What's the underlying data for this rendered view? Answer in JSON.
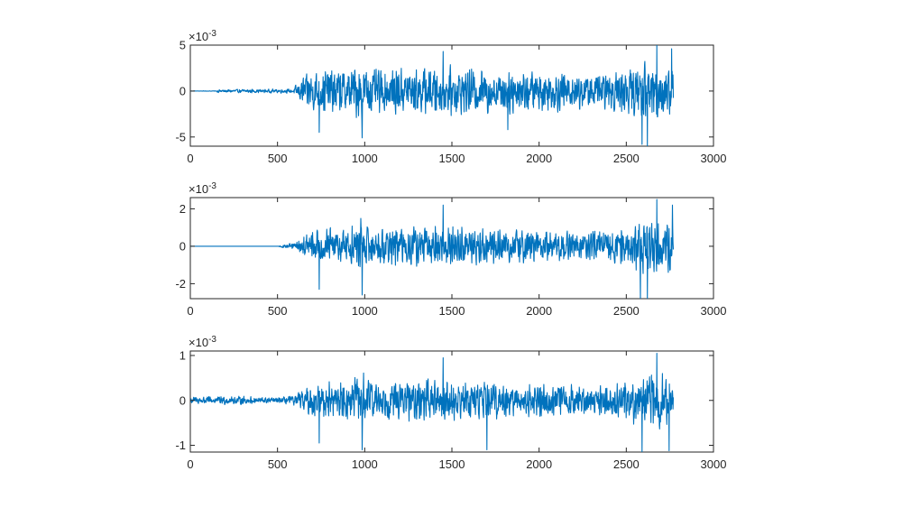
{
  "line_color": "#0072BD",
  "axis_color": "#262626",
  "chart_data": [
    {
      "type": "line",
      "exponent_label": "×10",
      "exponent_power": "-3",
      "xlim": [
        0,
        3000
      ],
      "ylim": [
        -6,
        5
      ],
      "xticks": [
        0,
        500,
        1000,
        1500,
        2000,
        2500,
        3000
      ],
      "yticks": [
        -5,
        0,
        5
      ],
      "grid": false,
      "x_range": [
        0,
        2770
      ],
      "envelope": [
        {
          "x": 0,
          "a": 0.02
        },
        {
          "x": 150,
          "a": 0.04
        },
        {
          "x": 155,
          "a": 0.25
        },
        {
          "x": 580,
          "a": 0.3
        },
        {
          "x": 610,
          "a": 1.0
        },
        {
          "x": 650,
          "a": 2.2
        },
        {
          "x": 720,
          "a": 3.3
        },
        {
          "x": 900,
          "a": 3.3
        },
        {
          "x": 980,
          "a": 4.6
        },
        {
          "x": 1050,
          "a": 3.2
        },
        {
          "x": 1400,
          "a": 3.5
        },
        {
          "x": 1700,
          "a": 3.2
        },
        {
          "x": 2000,
          "a": 3.0
        },
        {
          "x": 2300,
          "a": 2.6
        },
        {
          "x": 2500,
          "a": 3.2
        },
        {
          "x": 2600,
          "a": 4.8
        },
        {
          "x": 2700,
          "a": 4.4
        },
        {
          "x": 2770,
          "a": 4.0
        }
      ],
      "peaks": [
        {
          "x": 985,
          "y": -5.1
        },
        {
          "x": 1450,
          "y": 4.3
        },
        {
          "x": 2590,
          "y": -5.8
        },
        {
          "x": 2620,
          "y": -6.0
        },
        {
          "x": 2675,
          "y": 5.0
        },
        {
          "x": 2760,
          "y": 4.6
        },
        {
          "x": 740,
          "y": -4.5
        },
        {
          "x": 1820,
          "y": -4.2
        }
      ]
    },
    {
      "type": "line",
      "exponent_label": "×10",
      "exponent_power": "-3",
      "xlim": [
        0,
        3000
      ],
      "ylim": [
        -2.8,
        2.6
      ],
      "xticks": [
        0,
        500,
        1000,
        1500,
        2000,
        2500,
        3000
      ],
      "yticks": [
        -2,
        0,
        2
      ],
      "grid": false,
      "x_range": [
        0,
        2770
      ],
      "envelope": [
        {
          "x": 0,
          "a": 0.0
        },
        {
          "x": 505,
          "a": 0.0
        },
        {
          "x": 510,
          "a": 0.08
        },
        {
          "x": 600,
          "a": 0.25
        },
        {
          "x": 650,
          "a": 0.8
        },
        {
          "x": 720,
          "a": 1.3
        },
        {
          "x": 900,
          "a": 1.3
        },
        {
          "x": 980,
          "a": 1.9
        },
        {
          "x": 1050,
          "a": 1.3
        },
        {
          "x": 1400,
          "a": 1.5
        },
        {
          "x": 1700,
          "a": 1.3
        },
        {
          "x": 2000,
          "a": 1.2
        },
        {
          "x": 2300,
          "a": 1.0
        },
        {
          "x": 2500,
          "a": 1.4
        },
        {
          "x": 2600,
          "a": 2.0
        },
        {
          "x": 2700,
          "a": 1.9
        },
        {
          "x": 2770,
          "a": 1.7
        }
      ],
      "peaks": [
        {
          "x": 985,
          "y": -2.6
        },
        {
          "x": 1450,
          "y": 2.2
        },
        {
          "x": 2580,
          "y": -2.8
        },
        {
          "x": 2620,
          "y": -2.8
        },
        {
          "x": 2675,
          "y": 2.5
        },
        {
          "x": 2765,
          "y": 2.2
        },
        {
          "x": 740,
          "y": -2.3
        }
      ]
    },
    {
      "type": "line",
      "exponent_label": "×10",
      "exponent_power": "-3",
      "xlim": [
        0,
        3000
      ],
      "ylim": [
        -1.15,
        1.1
      ],
      "xticks": [
        0,
        500,
        1000,
        1500,
        2000,
        2500,
        3000
      ],
      "yticks": [
        -1,
        0,
        1
      ],
      "grid": false,
      "x_range": [
        0,
        2770
      ],
      "envelope": [
        {
          "x": 0,
          "a": 0.12
        },
        {
          "x": 300,
          "a": 0.12
        },
        {
          "x": 500,
          "a": 0.08
        },
        {
          "x": 600,
          "a": 0.15
        },
        {
          "x": 650,
          "a": 0.35
        },
        {
          "x": 720,
          "a": 0.55
        },
        {
          "x": 900,
          "a": 0.55
        },
        {
          "x": 980,
          "a": 0.8
        },
        {
          "x": 1050,
          "a": 0.55
        },
        {
          "x": 1400,
          "a": 0.6
        },
        {
          "x": 1700,
          "a": 0.55
        },
        {
          "x": 2000,
          "a": 0.5
        },
        {
          "x": 2300,
          "a": 0.42
        },
        {
          "x": 2500,
          "a": 0.55
        },
        {
          "x": 2600,
          "a": 0.85
        },
        {
          "x": 2700,
          "a": 0.8
        },
        {
          "x": 2770,
          "a": 0.7
        }
      ],
      "peaks": [
        {
          "x": 985,
          "y": -1.1
        },
        {
          "x": 1450,
          "y": 0.95
        },
        {
          "x": 1700,
          "y": -1.1
        },
        {
          "x": 2590,
          "y": -1.15
        },
        {
          "x": 2675,
          "y": 1.05
        },
        {
          "x": 2745,
          "y": -1.12
        },
        {
          "x": 740,
          "y": -0.95
        }
      ]
    }
  ]
}
